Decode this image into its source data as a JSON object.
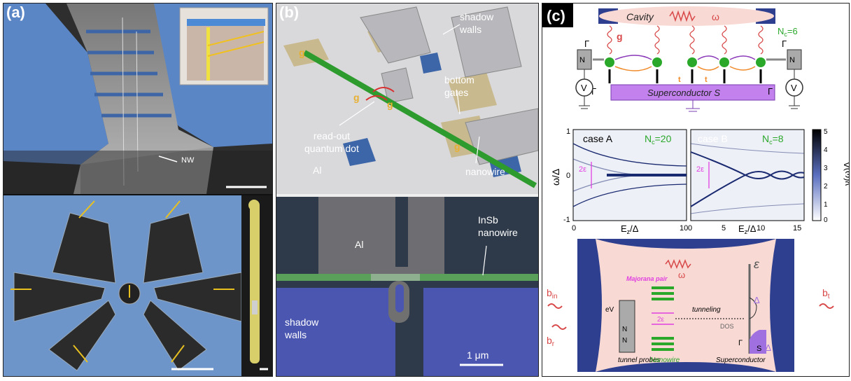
{
  "panels": {
    "a": {
      "label": "(a)",
      "nw_label": "NW"
    },
    "b": {
      "label": "(b)",
      "top": {
        "shadow_walls": "shadow\nwalls",
        "bottom_gates": "bottom\ngates",
        "readout": "read-out\nquantum dot",
        "al": "Al",
        "nanowire": "nanowire",
        "g": "g"
      },
      "bottom": {
        "al": "Al",
        "insb": "InSb\nnanowire",
        "shadow_walls": "shadow\nwalls",
        "scale": "1 μm"
      }
    },
    "c": {
      "label": "(c)",
      "schematic": {
        "cavity": "Cavity",
        "omega0": "ω",
        "nc6": "N",
        "nc6_sub": "c",
        "nc6_val": "=6",
        "superconductor": "Superconductor  S",
        "g": "g",
        "gamma_n": "Γ",
        "gamma_s": "Γ",
        "nl": "N",
        "nr": "N",
        "v": "V",
        "t": "t"
      },
      "plots": {
        "case_a": "case A",
        "case_b": "case B",
        "nc20": "N",
        "nc20_val": "=20",
        "nc8_val": "=8",
        "two_eps": "2ε",
        "ylabel": "ω/Δ",
        "xlabel": "E",
        "xlabel_sub": "z",
        "xlabel_tail": "/Δ",
        "colorbar_label": "ν(ω)Δ",
        "a_xticks": [
          "0",
          "10"
        ],
        "b_xticks": [
          "0",
          "5",
          "10",
          "15"
        ],
        "yticks": [
          "1",
          "0",
          "-1"
        ],
        "cbar_ticks": [
          "5",
          "4",
          "3",
          "2",
          "1",
          "0"
        ]
      },
      "bottom": {
        "bin": "b",
        "bin_sub": "in",
        "br": "b",
        "br_sub": "r",
        "bt": "b",
        "bt_sub": "t",
        "omega0": "ω",
        "majorana": "Majorana pair",
        "ev": "eV",
        "nl": "N",
        "nr": "N",
        "tunnel_probes": "tunnel\nprobes",
        "nanowire": "Nanowire",
        "tunneling": "tunneling",
        "dos": "DOS",
        "superconductor": "Superconductor",
        "two_eps": "2ε",
        "eps": "ε",
        "delta_p": "Δ",
        "delta_m": "-Δ",
        "gamma_b": "Γ",
        "s": "S"
      }
    }
  },
  "colors": {
    "blue_sem": "#5a86c8",
    "pink": "#f8d9d4",
    "navy": "#2d3f8e",
    "green": "#2aa82a",
    "purple": "#a070e0",
    "magenta": "#e040e0",
    "red": "#d84848"
  }
}
